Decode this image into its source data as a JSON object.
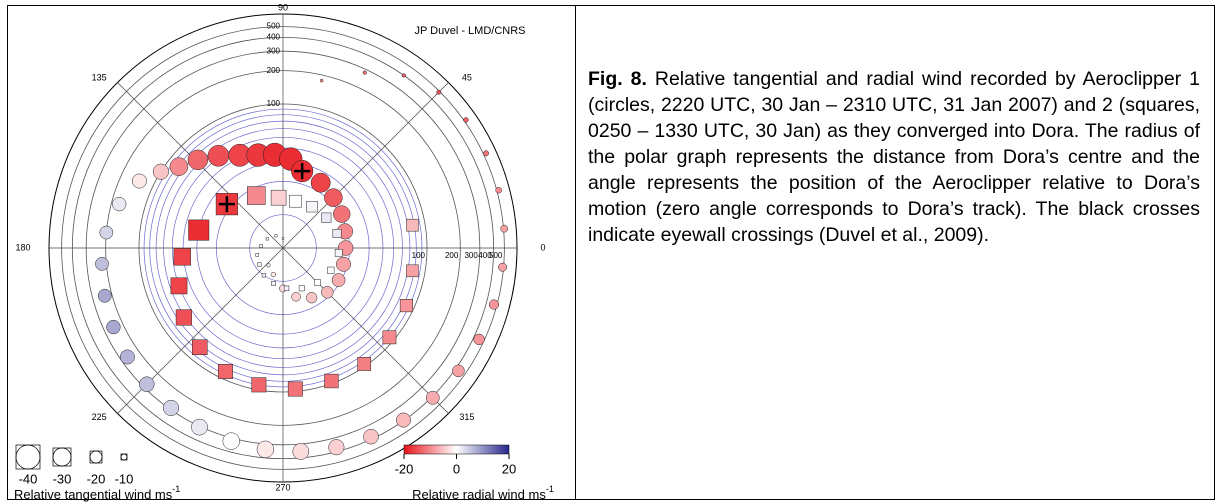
{
  "chart_data": {
    "type": "polar-scatter",
    "credit": "JP Duvel - LMD/CNRS",
    "rlim": [
      5,
      650
    ],
    "log_r": true,
    "rticks": [
      100,
      200,
      300,
      400,
      500
    ],
    "rminor": [
      10,
      20,
      30,
      40,
      50,
      60,
      70,
      80,
      90
    ],
    "thetaticks": [
      0,
      45,
      90,
      135,
      180,
      225,
      270,
      315
    ],
    "series": [
      {
        "name": "Aeroclipper 1",
        "marker": "circle",
        "theta": [
          77,
          65,
          55,
          45,
          35,
          25,
          15,
          5,
          355,
          345,
          335,
          325,
          315,
          305,
          295,
          285,
          275,
          265,
          255,
          245,
          235,
          225,
          215,
          205,
          195,
          185,
          175,
          165,
          155,
          148,
          142,
          134,
          125,
          115,
          105,
          95,
          85,
          76,
          60,
          45,
          30,
          15,
          0,
          345,
          330,
          315,
          300,
          285,
          270,
          250,
          230
        ],
        "r": [
          178,
          280,
          400,
          488,
          520,
          528,
          520,
          507,
          490,
          470,
          450,
          430,
          410,
          395,
          380,
          365,
          350,
          335,
          320,
          305,
          290,
          275,
          260,
          245,
          232,
          219,
          200,
          170,
          135,
          100,
          78,
          64,
          52,
          42,
          37,
          35,
          32,
          26,
          24,
          22,
          20.5,
          19,
          18.4,
          18.4,
          19,
          18.4,
          16.5,
          14.3,
          11.6,
          9,
          8
        ],
        "tangential": [
          -5,
          -6,
          -6,
          -7,
          -8,
          -9,
          -10,
          -12,
          -14,
          -16,
          -18,
          -20,
          -22,
          -24,
          -25,
          -26,
          -27,
          -28,
          -28,
          -27,
          -26,
          -25,
          -24,
          -23,
          -22,
          -22,
          -22,
          -23,
          -24,
          -26,
          -30,
          -33,
          -35,
          -37,
          -38,
          -39,
          -38,
          -36,
          -32,
          -30,
          -28,
          -26,
          -25,
          -24,
          -22,
          -20,
          -18,
          -15,
          -12,
          -8,
          -6
        ],
        "radial": [
          -10,
          -12,
          -14,
          -15,
          -14,
          -12,
          -10,
          -8,
          -8,
          -9,
          -9,
          -8,
          -7,
          -6,
          -5,
          -4,
          -3,
          -2,
          0,
          2,
          4,
          6,
          7,
          8,
          8,
          6,
          4,
          2,
          -2,
          -5,
          -10,
          -13,
          -15,
          -16,
          -17,
          -18,
          -18,
          -18,
          -16,
          -14,
          -12,
          -10,
          -9,
          -8,
          -7,
          -6,
          -5,
          -4,
          -3,
          -2,
          -1
        ]
      },
      {
        "name": "Aeroclipper 2",
        "marker": "square",
        "theta": [
          10,
          350,
          335,
          320,
          305,
          290,
          275,
          260,
          245,
          230,
          215,
          200,
          185,
          168,
          142,
          117,
          95,
          75,
          55,
          35,
          15,
          355,
          335,
          315,
          295,
          275,
          255,
          235,
          215,
          195,
          175,
          150,
          120,
          90
        ],
        "r": [
          77,
          77,
          85,
          90,
          95,
          95,
          95,
          90,
          85,
          74,
          62,
          50,
          41,
          30,
          22,
          17,
          14.3,
          13.7,
          14.3,
          15,
          16,
          16,
          15,
          13.7,
          12.6,
          11.6,
          10.7,
          10,
          9.1,
          8.7,
          7.9,
          7.3,
          6.7,
          6.1
        ],
        "tangential": [
          -20,
          -20,
          -21,
          -22,
          -22,
          -23,
          -24,
          -24,
          -24,
          -25,
          -26,
          -27,
          -28,
          -34,
          -36,
          -30,
          -25,
          -20,
          -18,
          -16,
          -14,
          -12,
          -11,
          -10,
          -9,
          -8,
          -7,
          -6,
          -6,
          -5,
          -5,
          -4,
          -4,
          -3
        ],
        "radial": [
          -6,
          -8,
          -9,
          -10,
          -11,
          -12,
          -12,
          -13,
          -13,
          -14,
          -15,
          -16,
          -16,
          -18,
          -17,
          -10,
          -4,
          0,
          1,
          2,
          2,
          1,
          0,
          0,
          0,
          1,
          1,
          1,
          1,
          0,
          0,
          0,
          0,
          0
        ]
      }
    ],
    "crossings": [
      {
        "theta": 76,
        "r": 26
      },
      {
        "theta": 142,
        "r": 22
      }
    ],
    "size_legend": {
      "values": [
        -40,
        -30,
        -20,
        -10
      ],
      "title": "Relative tangential wind ms",
      "title_sup": "-1"
    },
    "colorbar": {
      "lim": [
        -20,
        20
      ],
      "ticks": [
        -20,
        0,
        20
      ],
      "colors": [
        "#e8141c",
        "#ffffff",
        "#26268c"
      ],
      "title": "Relative radial wind ms",
      "title_sup": "-1"
    }
  },
  "caption": {
    "label": "Fig. 8.",
    "text": " Relative tangential and radial wind recorded by Aeroclipper 1 (circles, 2220 UTC, 30 Jan – 2310 UTC, 31 Jan 2007) and 2 (squares, 0250 – 1330 UTC, 30 Jan) as they converged into Dora.  The radius of the polar graph represents the distance from Dora’s centre and the angle represents the position of the Aeroclipper relative to Dora’s motion (zero angle corresponds to Dora’s track). The black crosses indicate eyewall crossings (Duvel et al., 2009)."
  }
}
